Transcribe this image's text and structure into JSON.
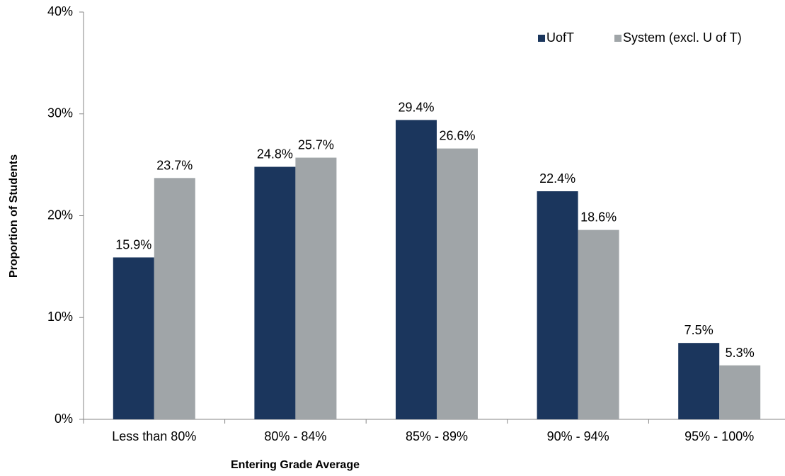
{
  "chart_data": {
    "type": "bar",
    "title": "",
    "xlabel": "Entering Grade Average",
    "ylabel": "Proportion of Students",
    "categories": [
      "Less than 80%",
      "80% - 84%",
      "85% - 89%",
      "90% - 94%",
      "95% - 100%"
    ],
    "series": [
      {
        "name": "UofT",
        "color": "#1b365d",
        "values": [
          15.9,
          24.8,
          29.4,
          22.4,
          7.5
        ],
        "labels": [
          "15.9%",
          "24.8%",
          "29.4%",
          "22.4%",
          "7.5%"
        ]
      },
      {
        "name": "System (excl. U of T)",
        "color": "#a0a5a8",
        "values": [
          23.7,
          25.7,
          26.6,
          18.6,
          5.3
        ],
        "labels": [
          "23.7%",
          "25.7%",
          "26.6%",
          "18.6%",
          "5.3%"
        ]
      }
    ],
    "ylim": [
      0,
      40
    ],
    "yticks": [
      0,
      10,
      20,
      30,
      40
    ],
    "ytick_labels": [
      "0%",
      "10%",
      "20%",
      "30%",
      "40%"
    ],
    "grid": false,
    "legend_position": "top-right"
  }
}
